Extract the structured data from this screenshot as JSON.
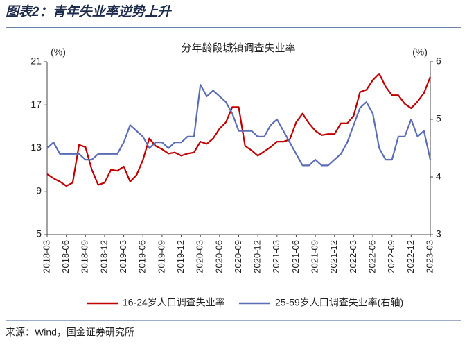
{
  "header": {
    "title": "图表2：青年失业率逆势上升"
  },
  "chart_data": {
    "type": "line",
    "title": "分年龄段城镇调查失业率",
    "ylabel": "(%)",
    "y2label": "(%)",
    "categories": [
      "2018-03",
      null,
      null,
      "2018-06",
      null,
      null,
      "2018-09",
      null,
      null,
      "2018-12",
      null,
      null,
      "2019-03",
      null,
      null,
      "2019-06",
      null,
      null,
      "2019-09",
      null,
      null,
      "2019-12",
      null,
      null,
      "2020-03",
      null,
      null,
      "2020-06",
      null,
      null,
      "2020-09",
      null,
      null,
      "2020-12",
      null,
      null,
      "2021-03",
      null,
      null,
      "2021-06",
      null,
      null,
      "2021-09",
      null,
      null,
      "2021-12",
      null,
      null,
      "2022-03",
      null,
      null,
      "2022-06",
      null,
      null,
      "2022-09",
      null,
      null,
      "2022-12",
      null,
      null,
      "2023-03"
    ],
    "series": [
      {
        "name": "16-24岁人口调查失业率",
        "color": "#c00000",
        "values": [
          10.6,
          10.2,
          9.9,
          9.5,
          9.8,
          13.3,
          13.1,
          11.0,
          9.6,
          9.8,
          11.0,
          10.9,
          11.3,
          9.9,
          10.5,
          11.9,
          13.9,
          13.2,
          12.9,
          12.5,
          12.6,
          12.3,
          12.5,
          12.6,
          13.6,
          13.4,
          13.9,
          14.8,
          15.4,
          16.8,
          16.8,
          13.2,
          12.8,
          12.3,
          12.7,
          13.1,
          13.6,
          13.6,
          13.8,
          15.4,
          16.2,
          15.3,
          14.6,
          14.2,
          14.3,
          14.3,
          15.3,
          15.3,
          16.0,
          18.2,
          18.4,
          19.3,
          19.9,
          18.7,
          17.9,
          17.9,
          17.1,
          16.7,
          17.3,
          18.1,
          19.6
        ]
      },
      {
        "name": "25-59岁人口调查失业率(右轴)",
        "color": "#5b6db5",
        "axis": "y2",
        "values": [
          4.5,
          4.6,
          4.4,
          4.4,
          4.4,
          4.4,
          4.3,
          4.3,
          4.4,
          4.4,
          4.4,
          4.4,
          4.6,
          4.9,
          4.8,
          4.7,
          4.5,
          4.6,
          4.6,
          4.5,
          4.6,
          4.6,
          4.7,
          4.7,
          5.6,
          5.4,
          5.5,
          5.4,
          5.3,
          5.1,
          4.8,
          4.8,
          4.8,
          4.7,
          4.7,
          4.9,
          5.0,
          4.8,
          4.6,
          4.4,
          4.2,
          4.2,
          4.3,
          4.2,
          4.2,
          4.3,
          4.4,
          4.6,
          4.9,
          5.2,
          5.3,
          5.1,
          4.5,
          4.3,
          4.3,
          4.7,
          4.7,
          5.0,
          4.7,
          4.8,
          4.3
        ]
      }
    ],
    "ylim": [
      5,
      21
    ],
    "yticks": [
      5,
      9,
      13,
      17,
      21
    ],
    "y2lim": [
      3,
      6
    ],
    "y2ticks": [
      3,
      4,
      5,
      6
    ],
    "legend": "bottom"
  },
  "source": "来源：Wind，国金证券研究所"
}
